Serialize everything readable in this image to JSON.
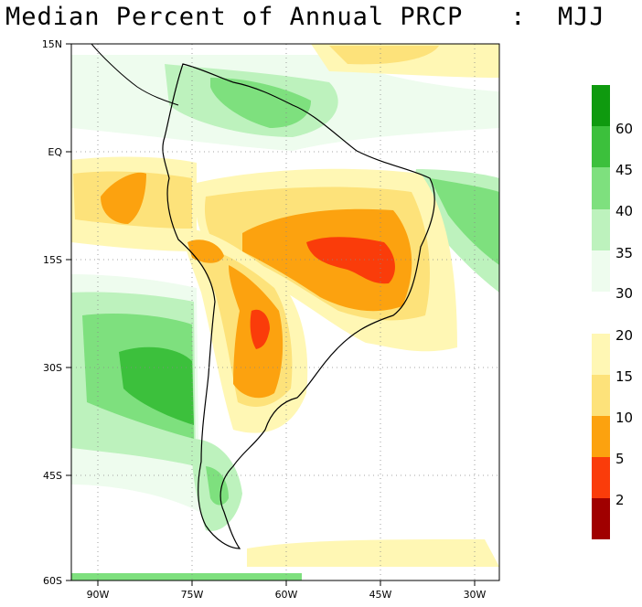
{
  "title": "Median Percent of Annual PRCP   :  MJJ",
  "map": {
    "lat_ticks": [
      "15N",
      "EQ",
      "15S",
      "30S",
      "45S",
      "60S"
    ],
    "lon_ticks": [
      "90W",
      "75W",
      "60W",
      "45W",
      "30W"
    ],
    "lon_range": [
      -95,
      -27
    ],
    "lat_range": [
      -60,
      15
    ]
  },
  "legend": {
    "wet": [
      {
        "label": "60",
        "color": "#0f9a0f"
      },
      {
        "label": "45",
        "color": "#3cc03c"
      },
      {
        "label": "40",
        "color": "#7ee07e"
      },
      {
        "label": "35",
        "color": "#bdf2bd"
      },
      {
        "label": "30",
        "color": "#eefcee"
      }
    ],
    "dry": [
      {
        "label": "20",
        "color": "#fff7b4"
      },
      {
        "label": "15",
        "color": "#fde27a"
      },
      {
        "label": "10",
        "color": "#fca20f"
      },
      {
        "label": "5",
        "color": "#fa3c0a"
      },
      {
        "label": "2",
        "color": "#a00000"
      }
    ]
  }
}
